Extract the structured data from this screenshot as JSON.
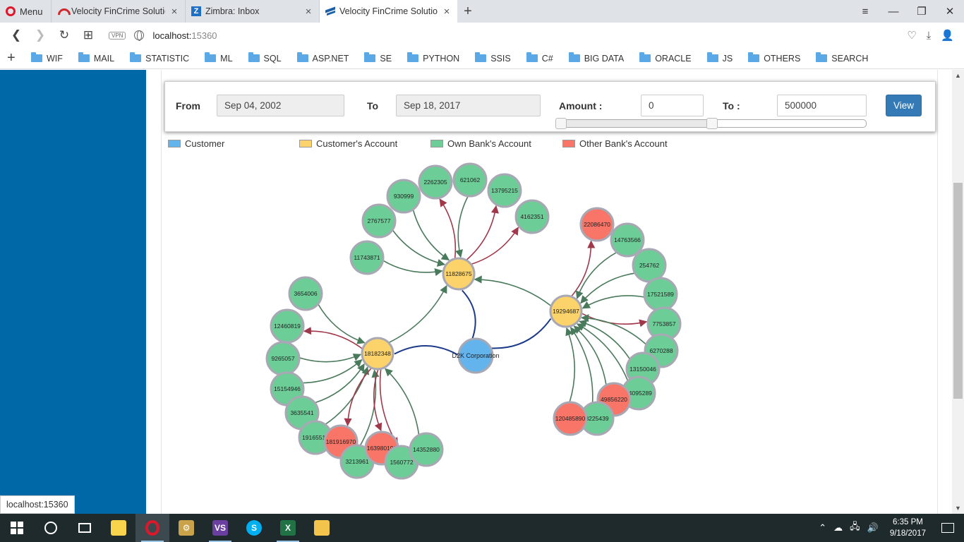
{
  "browser": {
    "menu_label": "Menu",
    "tabs": [
      {
        "title": "Velocity FinCrime Solution",
        "icon": "velocity-arc-icon",
        "active": false
      },
      {
        "title": "Zimbra: Inbox",
        "icon": "zimbra-icon",
        "active": false
      },
      {
        "title": "Velocity FinCrime Solution",
        "icon": "velocity-v-icon",
        "active": true
      }
    ],
    "url_host": "localhost:",
    "url_port": "15360",
    "vpn_label": "VPN",
    "bookmarks": [
      "WIF",
      "MAIL",
      "STATISTIC",
      "ML",
      "SQL",
      "ASP.NET",
      "SE",
      "PYTHON",
      "SSIS",
      "C#",
      "BIG DATA",
      "ORACLE",
      "JS",
      "OTHERS",
      "SEARCH"
    ]
  },
  "filter": {
    "from_label": "From",
    "from_value": "Sep 04, 2002",
    "to_label": "To",
    "to_value": "Sep 18, 2017",
    "amount_label": "Amount :",
    "amount_min": "0",
    "amount_to_label": "To :",
    "amount_max": "500000",
    "view_label": "View",
    "slider_low_fraction": 0.0,
    "slider_high_fraction": 0.5
  },
  "legend": [
    {
      "label": "Customer",
      "color": "#63b3ed"
    },
    {
      "label": "Customer's Account",
      "color": "#fcd36b"
    },
    {
      "label": "Own Bank's Account",
      "color": "#6dcd97"
    },
    {
      "label": "Other Bank's Account",
      "color": "#f87568"
    }
  ],
  "colors": {
    "customer": "#63b3ed",
    "customer_account": "#fcd36b",
    "own_bank": "#6dcd97",
    "other_bank": "#f87568",
    "edge_in": "#4a7a5c",
    "edge_out": "#a0384a",
    "edge_owner": "#1c3a8a"
  },
  "graph": {
    "nodes": [
      {
        "id": "D2K Corporation",
        "type": "customer"
      },
      {
        "id": "11828675",
        "type": "customer_account"
      },
      {
        "id": "18182348",
        "type": "customer_account"
      },
      {
        "id": "19294687",
        "type": "customer_account"
      },
      {
        "id": "2262305",
        "type": "own_bank"
      },
      {
        "id": "621062",
        "type": "own_bank"
      },
      {
        "id": "930999",
        "type": "own_bank"
      },
      {
        "id": "13795215",
        "type": "own_bank"
      },
      {
        "id": "2767577",
        "type": "own_bank"
      },
      {
        "id": "4162351",
        "type": "own_bank"
      },
      {
        "id": "11743871",
        "type": "own_bank"
      },
      {
        "id": "3654006",
        "type": "own_bank"
      },
      {
        "id": "12460819",
        "type": "own_bank"
      },
      {
        "id": "9265057",
        "type": "own_bank"
      },
      {
        "id": "15154946",
        "type": "own_bank"
      },
      {
        "id": "3635541",
        "type": "own_bank"
      },
      {
        "id": "19165510",
        "type": "own_bank"
      },
      {
        "id": "181916970",
        "type": "other_bank"
      },
      {
        "id": "3213961",
        "type": "own_bank"
      },
      {
        "id": "163980190",
        "type": "other_bank"
      },
      {
        "id": "1560772",
        "type": "own_bank"
      },
      {
        "id": "14352880",
        "type": "own_bank"
      },
      {
        "id": "22086470",
        "type": "other_bank"
      },
      {
        "id": "14763566",
        "type": "own_bank"
      },
      {
        "id": "254762",
        "type": "own_bank"
      },
      {
        "id": "17521589",
        "type": "own_bank"
      },
      {
        "id": "7753857",
        "type": "own_bank"
      },
      {
        "id": "6270288",
        "type": "own_bank"
      },
      {
        "id": "13150046",
        "type": "own_bank"
      },
      {
        "id": "14095289",
        "type": "own_bank"
      },
      {
        "id": "49856220",
        "type": "other_bank"
      },
      {
        "id": "8225439",
        "type": "own_bank"
      },
      {
        "id": "120485890",
        "type": "other_bank"
      }
    ],
    "links": [
      {
        "source": "D2K Corporation",
        "target": "11828675",
        "kind": "owner"
      },
      {
        "source": "D2K Corporation",
        "target": "18182348",
        "kind": "owner"
      },
      {
        "source": "D2K Corporation",
        "target": "19294687",
        "kind": "owner"
      },
      {
        "source": "19294687",
        "target": "11828675",
        "kind": "in"
      },
      {
        "source": "18182348",
        "target": "11828675",
        "kind": "in"
      },
      {
        "source": "11743871",
        "target": "11828675",
        "kind": "in"
      },
      {
        "source": "2767577",
        "target": "11828675",
        "kind": "in"
      },
      {
        "source": "930999",
        "target": "11828675",
        "kind": "in"
      },
      {
        "source": "11828675",
        "target": "2262305",
        "kind": "out"
      },
      {
        "source": "621062",
        "target": "11828675",
        "kind": "in"
      },
      {
        "source": "11828675",
        "target": "13795215",
        "kind": "out"
      },
      {
        "source": "11828675",
        "target": "4162351",
        "kind": "out"
      },
      {
        "source": "3654006",
        "target": "18182348",
        "kind": "in"
      },
      {
        "source": "18182348",
        "target": "12460819",
        "kind": "out"
      },
      {
        "source": "9265057",
        "target": "18182348",
        "kind": "in"
      },
      {
        "source": "15154946",
        "target": "18182348",
        "kind": "in"
      },
      {
        "source": "3635541",
        "target": "18182348",
        "kind": "in"
      },
      {
        "source": "19165510",
        "target": "18182348",
        "kind": "in"
      },
      {
        "source": "18182348",
        "target": "181916970",
        "kind": "out"
      },
      {
        "source": "3213961",
        "target": "18182348",
        "kind": "in"
      },
      {
        "source": "18182348",
        "target": "163980190",
        "kind": "out"
      },
      {
        "source": "18182348",
        "target": "1560772",
        "kind": "out"
      },
      {
        "source": "14352880",
        "target": "18182348",
        "kind": "in"
      },
      {
        "source": "19294687",
        "target": "22086470",
        "kind": "out"
      },
      {
        "source": "14763566",
        "target": "19294687",
        "kind": "in"
      },
      {
        "source": "254762",
        "target": "19294687",
        "kind": "in"
      },
      {
        "source": "17521589",
        "target": "19294687",
        "kind": "in"
      },
      {
        "source": "19294687",
        "target": "7753857",
        "kind": "out"
      },
      {
        "source": "6270288",
        "target": "19294687",
        "kind": "in"
      },
      {
        "source": "13150046",
        "target": "19294687",
        "kind": "in"
      },
      {
        "source": "14095289",
        "target": "19294687",
        "kind": "in"
      },
      {
        "source": "49856220",
        "target": "19294687",
        "kind": "in"
      },
      {
        "source": "8225439",
        "target": "19294687",
        "kind": "in"
      },
      {
        "source": "120485890",
        "target": "19294687",
        "kind": "in"
      }
    ]
  },
  "status_url": "localhost:15360",
  "taskbar": {
    "apps": [
      "start-icon",
      "cortana-icon",
      "task-view-icon",
      "sticky-notes-icon",
      "opera-icon",
      "tools-icon",
      "visual-studio-icon",
      "skype-icon",
      "excel-icon",
      "file-explorer-icon"
    ],
    "time": "6:35 PM",
    "date": "9/18/2017"
  }
}
